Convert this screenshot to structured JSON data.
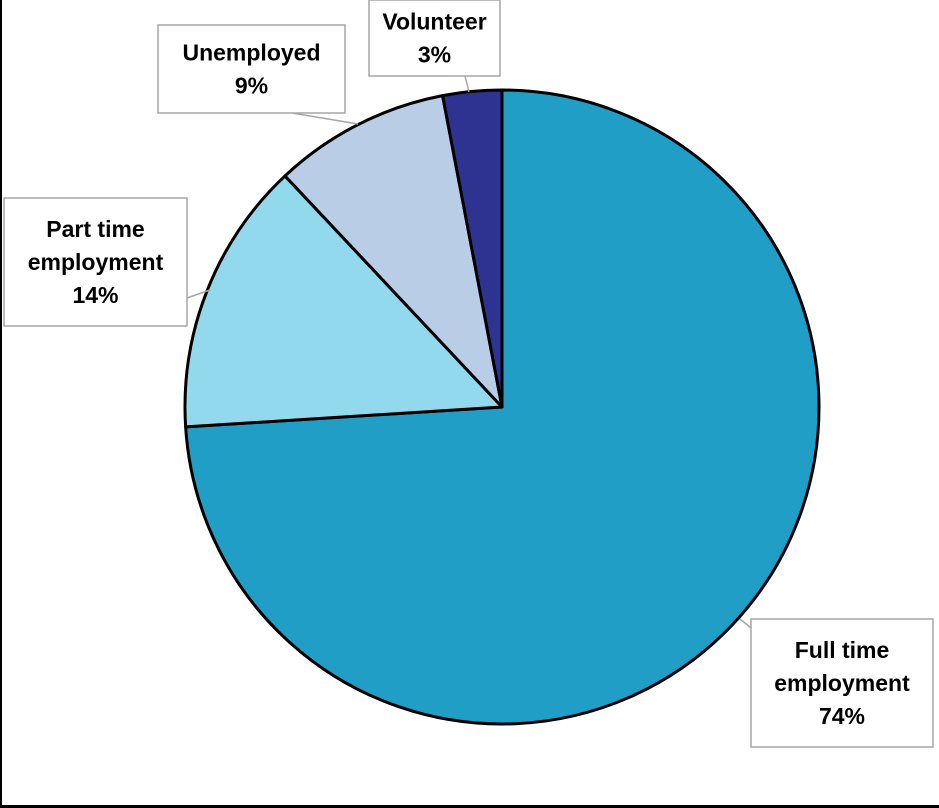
{
  "chart_data": {
    "type": "pie",
    "title": "",
    "slices": [
      {
        "name": "Full time employment",
        "label_lines": [
          "Full time",
          "employment",
          "74%"
        ],
        "value": 74,
        "color": "#219EC6"
      },
      {
        "name": "Part time employment",
        "label_lines": [
          "Part time",
          "employment",
          "14%"
        ],
        "value": 14,
        "color": "#93D9EE"
      },
      {
        "name": "Unemployed",
        "label_lines": [
          "Unemployed",
          "9%"
        ],
        "value": 9,
        "color": "#B9CEE6"
      },
      {
        "name": "Volunteer",
        "label_lines": [
          "Volunteer",
          "3%"
        ],
        "value": 3,
        "color": "#2E3391"
      }
    ],
    "legend": "none",
    "data_labels": "callout boxes with category name and percentage"
  }
}
